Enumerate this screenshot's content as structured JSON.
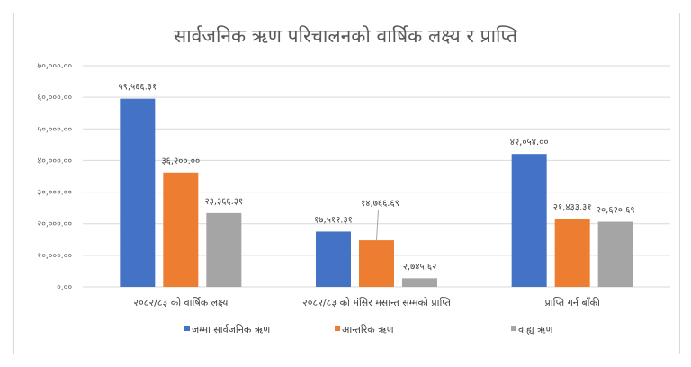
{
  "chart_data": {
    "type": "bar",
    "title": "सार्वजनिक ऋण परिचालनको वार्षिक लक्ष्य र प्राप्ति",
    "categories": [
      "२०८२/८३ को वार्षिक लक्ष्य",
      "२०८२/८३ को मंसिर मसान्त सम्मको प्राप्ति",
      "प्राप्ति गर्न बाँकी"
    ],
    "ylim": [
      0,
      70000
    ],
    "yticks": [
      0,
      10000,
      20000,
      30000,
      40000,
      50000,
      60000,
      70000
    ],
    "ytick_labels": [
      "०.००",
      "१०,०००.००",
      "२०,०००.००",
      "३०,०००.००",
      "४०,०००.००",
      "५०,०००.००",
      "६०,०००.००",
      "७०,०००.००"
    ],
    "grid": true,
    "legend_position": "bottom",
    "series": [
      {
        "name": "जम्मा सार्वजनिक ऋण",
        "color": "#4472C4",
        "values": [
          59566.31,
          17512.31,
          42054.0
        ],
        "labels": [
          "५९,५६६.३१",
          "१७,५१२.३१",
          "४२,०५४.००"
        ]
      },
      {
        "name": "आन्तरिक ऋण",
        "color": "#ED7D31",
        "values": [
          36200.0,
          14766.69,
          21433.31
        ],
        "labels": [
          "३६,२००.००",
          "१४,७६६.६९",
          "२१,४३३.३१"
        ]
      },
      {
        "name": "वाह्य ऋण",
        "color": "#A5A5A5",
        "values": [
          23366.31,
          2745.62,
          20620.69
        ],
        "labels": [
          "२३,३६६.३१",
          "२,७४५.६२",
          "२०,६२०.६९"
        ]
      }
    ]
  }
}
